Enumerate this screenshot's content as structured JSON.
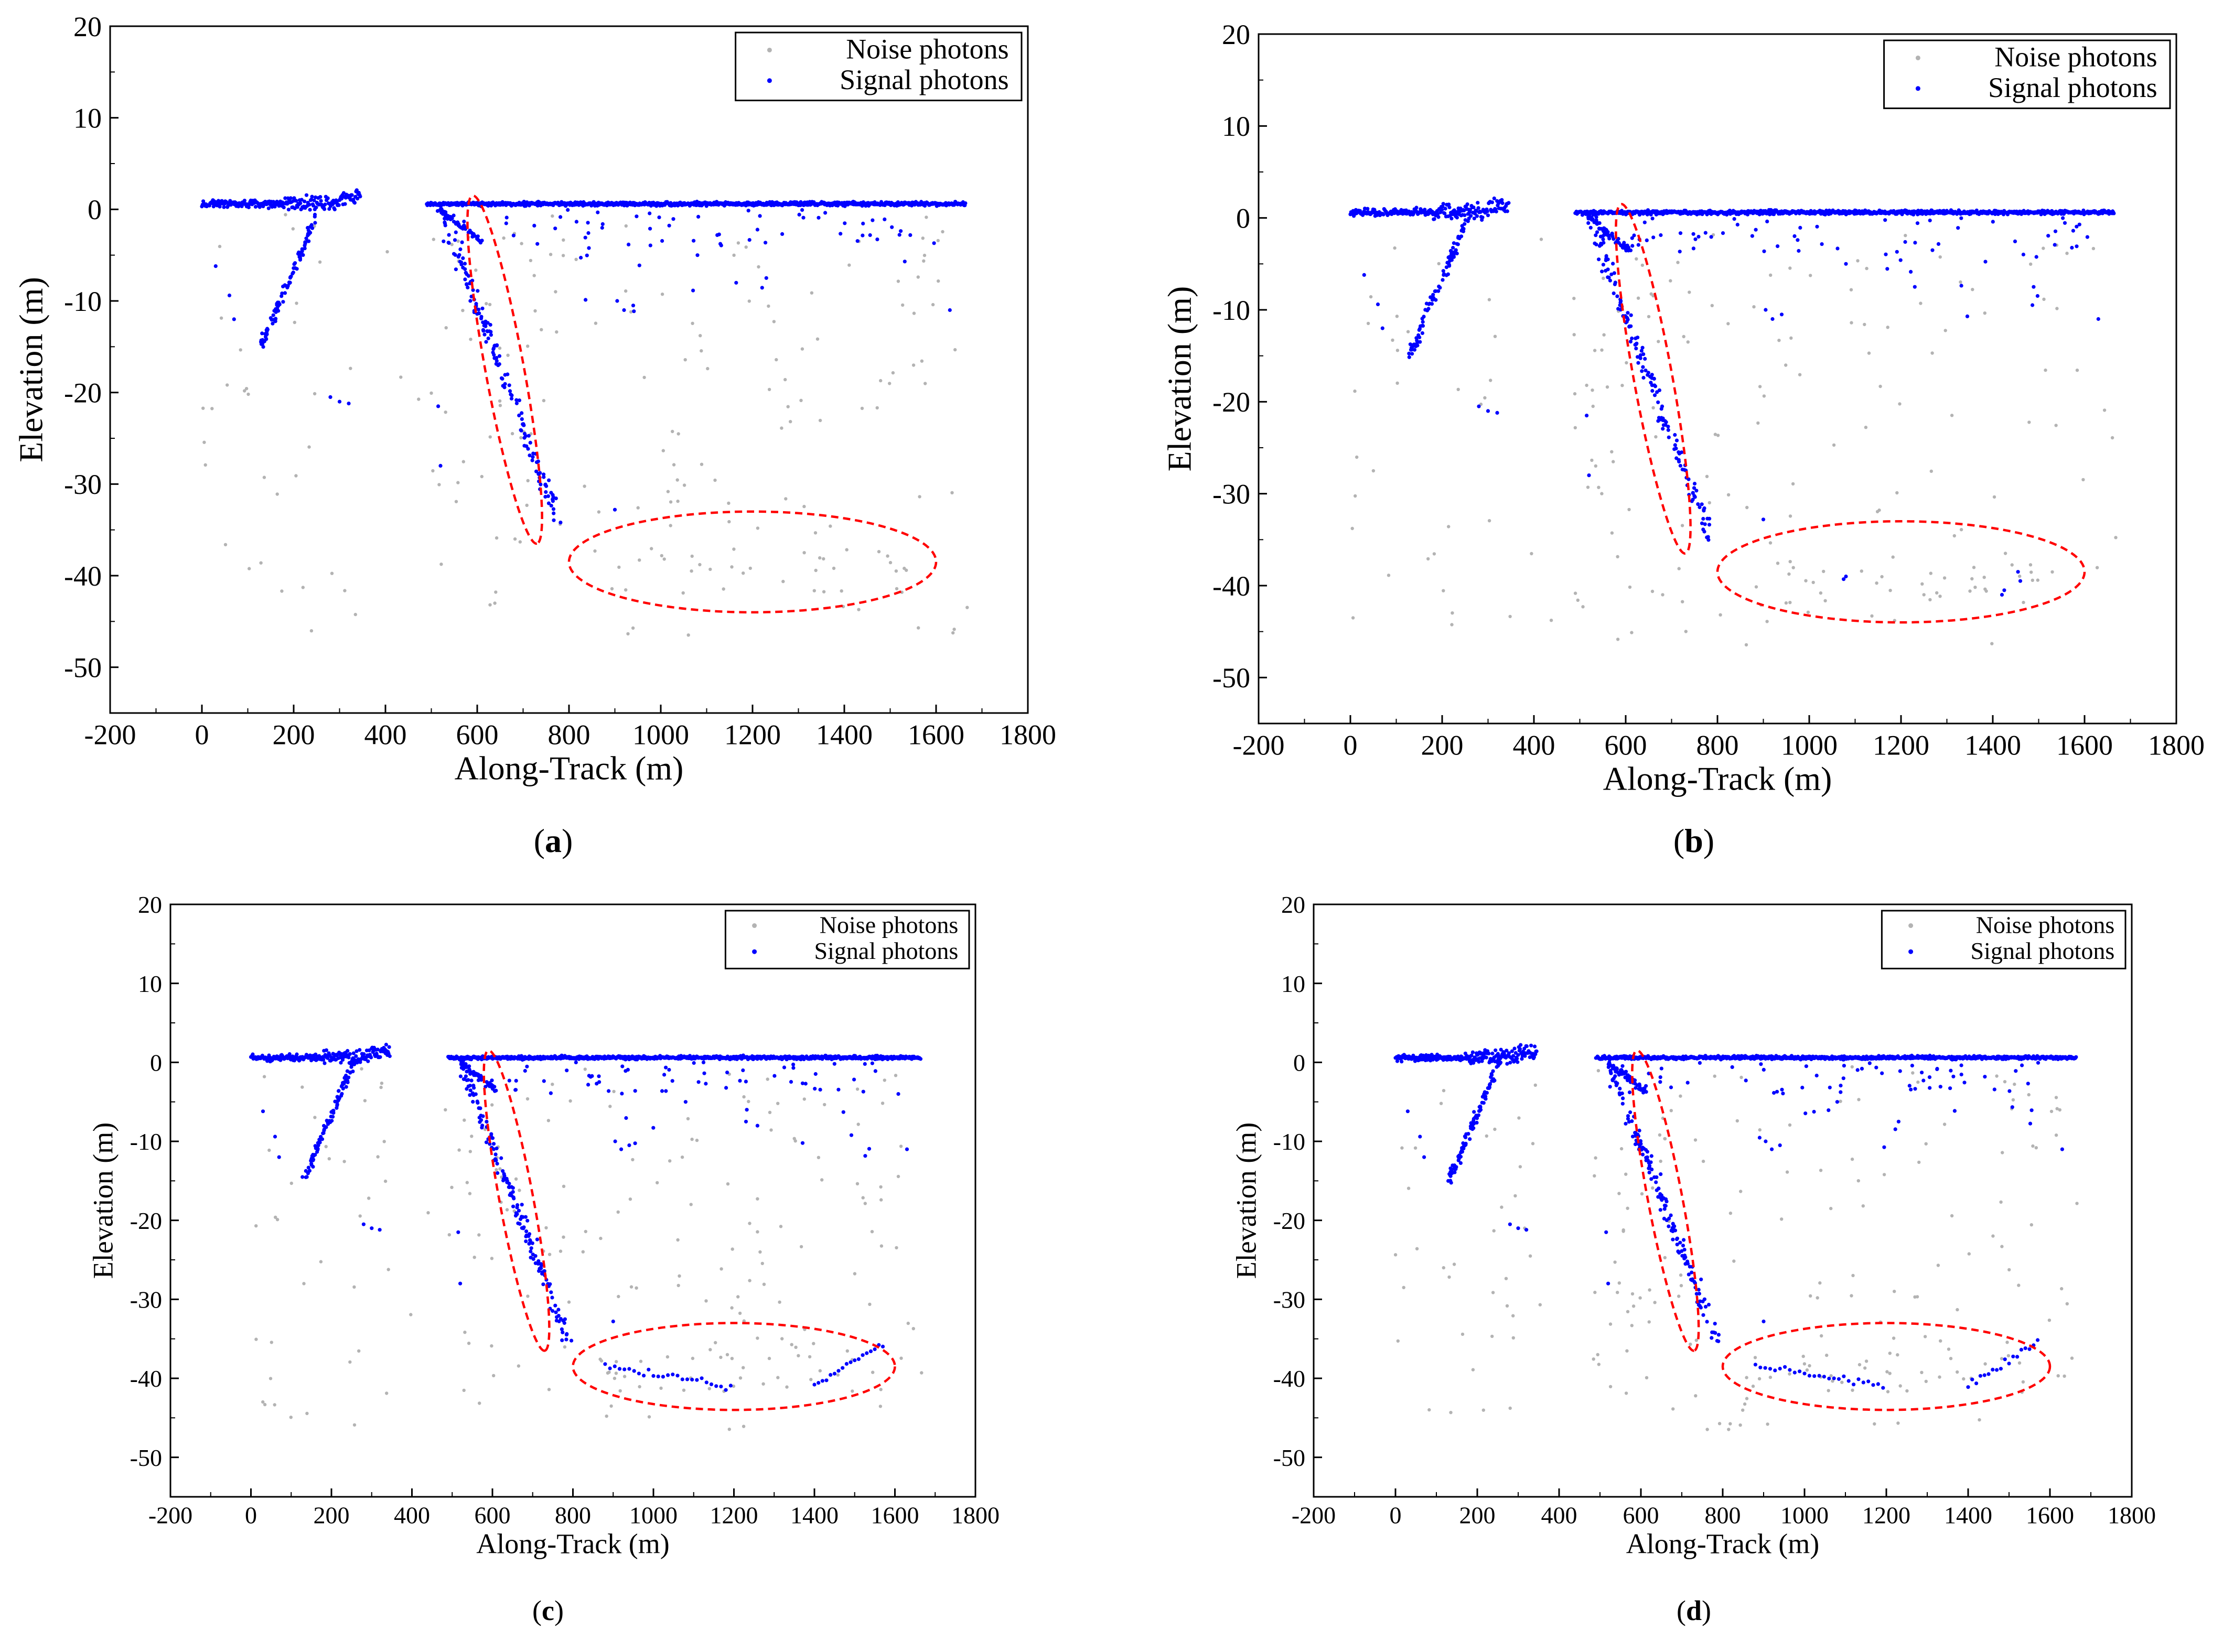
{
  "figure": {
    "panels": [
      "a",
      "b",
      "c",
      "d"
    ]
  },
  "chart_data": [
    {
      "panel_label": "a",
      "type": "scatter",
      "xlabel": "Along-Track (m)",
      "ylabel": "Elevation (m)",
      "xlim": [
        -200,
        1800
      ],
      "ylim": [
        -55,
        20
      ],
      "xticks": [
        -200,
        0,
        200,
        400,
        600,
        800,
        1000,
        1200,
        1400,
        1600,
        1800
      ],
      "yticks": [
        -50,
        -40,
        -30,
        -20,
        -10,
        0,
        10,
        20
      ],
      "legend": {
        "position": "top-right",
        "entries": [
          "Noise photons",
          "Signal photons"
        ]
      },
      "series": [
        {
          "name": "Noise photons",
          "color": "#b3b3b3"
        },
        {
          "name": "Signal photons",
          "color": "#0000ff"
        }
      ],
      "signal_extra": false,
      "annotations": [
        {
          "shape": "ellipse",
          "color": "#ff0000",
          "style": "dashed",
          "center": [
            660,
            -17.5
          ],
          "rx_data": 85,
          "ry_data": 20,
          "rotation_deg": -65
        },
        {
          "shape": "ellipse",
          "color": "#ff0000",
          "style": "dashed",
          "center": [
            1200,
            -38.5
          ],
          "rx_data": 400,
          "ry_data": 5.5,
          "rotation_deg": 0
        }
      ]
    },
    {
      "panel_label": "b",
      "type": "scatter",
      "xlabel": "Along-Track (m)",
      "ylabel": "Elevation (m)",
      "xlim": [
        -200,
        1800
      ],
      "ylim": [
        -55,
        20
      ],
      "xticks": [
        -200,
        0,
        200,
        400,
        600,
        800,
        1000,
        1200,
        1400,
        1600,
        1800
      ],
      "yticks": [
        -50,
        -40,
        -30,
        -20,
        -10,
        0,
        10,
        20
      ],
      "legend": {
        "position": "top-right",
        "entries": [
          "Noise photons",
          "Signal photons"
        ]
      },
      "series": [
        {
          "name": "Noise photons",
          "color": "#b3b3b3"
        },
        {
          "name": "Signal photons",
          "color": "#0000ff"
        }
      ],
      "signal_extra": "few",
      "annotations": [
        {
          "shape": "ellipse",
          "color": "#ff0000",
          "style": "dashed",
          "center": [
            660,
            -17.5
          ],
          "rx_data": 85,
          "ry_data": 20,
          "rotation_deg": -65
        },
        {
          "shape": "ellipse",
          "color": "#ff0000",
          "style": "dashed",
          "center": [
            1200,
            -38.5
          ],
          "rx_data": 400,
          "ry_data": 5.5,
          "rotation_deg": 0
        }
      ]
    },
    {
      "panel_label": "c",
      "type": "scatter",
      "xlabel": "Along-Track (m)",
      "ylabel": "Elevation (m)",
      "xlim": [
        -200,
        1800
      ],
      "ylim": [
        -55,
        20
      ],
      "xticks": [
        -200,
        0,
        200,
        400,
        600,
        800,
        1000,
        1200,
        1400,
        1600,
        1800
      ],
      "yticks": [
        -50,
        -40,
        -30,
        -20,
        -10,
        0,
        10,
        20
      ],
      "legend": {
        "position": "top-right",
        "entries": [
          "Noise photons",
          "Signal photons"
        ]
      },
      "series": [
        {
          "name": "Noise photons",
          "color": "#b3b3b3"
        },
        {
          "name": "Signal photons",
          "color": "#0000ff"
        }
      ],
      "signal_extra": "many",
      "annotations": [
        {
          "shape": "ellipse",
          "color": "#ff0000",
          "style": "dashed",
          "center": [
            660,
            -17.5
          ],
          "rx_data": 85,
          "ry_data": 20,
          "rotation_deg": -65
        },
        {
          "shape": "ellipse",
          "color": "#ff0000",
          "style": "dashed",
          "center": [
            1200,
            -38.5
          ],
          "rx_data": 400,
          "ry_data": 5.5,
          "rotation_deg": 0
        }
      ]
    },
    {
      "panel_label": "d",
      "type": "scatter",
      "xlabel": "Along-Track (m)",
      "ylabel": "Elevation (m)",
      "xlim": [
        -200,
        1800
      ],
      "ylim": [
        -55,
        20
      ],
      "xticks": [
        -200,
        0,
        200,
        400,
        600,
        800,
        1000,
        1200,
        1400,
        1600,
        1800
      ],
      "yticks": [
        -50,
        -40,
        -30,
        -20,
        -10,
        0,
        10,
        20
      ],
      "legend": {
        "position": "top-right",
        "entries": [
          "Noise photons",
          "Signal photons"
        ]
      },
      "series": [
        {
          "name": "Noise photons",
          "color": "#b3b3b3"
        },
        {
          "name": "Signal photons",
          "color": "#0000ff"
        }
      ],
      "signal_extra": "many",
      "annotations": [
        {
          "shape": "ellipse",
          "color": "#ff0000",
          "style": "dashed",
          "center": [
            660,
            -17.5
          ],
          "rx_data": 85,
          "ry_data": 20,
          "rotation_deg": -65
        },
        {
          "shape": "ellipse",
          "color": "#ff0000",
          "style": "dashed",
          "center": [
            1200,
            -38.5
          ],
          "rx_data": 400,
          "ry_data": 5.5,
          "rotation_deg": 0
        }
      ]
    }
  ]
}
